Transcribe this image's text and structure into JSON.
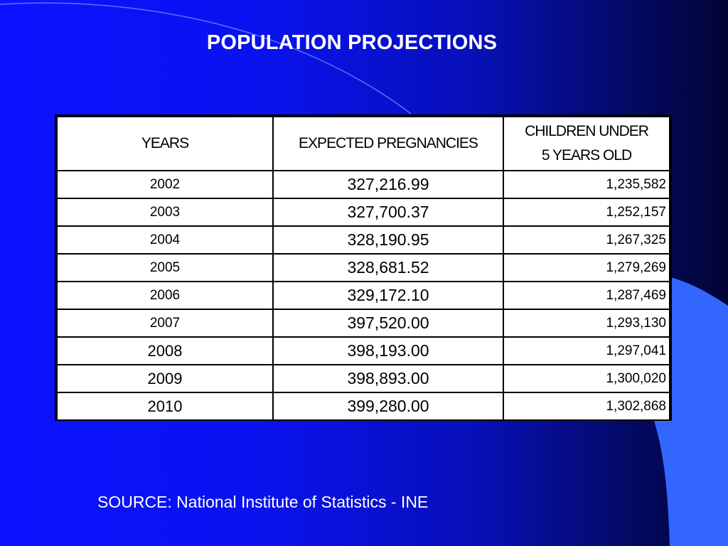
{
  "title": "POPULATION PROJECTIONS",
  "table": {
    "headers": {
      "years": "YEARS",
      "pregnancies": "EXPECTED PREGNANCIES",
      "children_line1": "CHILDREN UNDER",
      "children_line2": "5 YEARS OLD"
    },
    "rows": [
      {
        "year": "2002",
        "pregnancies": "327,216.99",
        "children": "1,235,582"
      },
      {
        "year": "2003",
        "pregnancies": "327,700.37",
        "children": "1,252,157"
      },
      {
        "year": "2004",
        "pregnancies": "328,190.95",
        "children": "1,267,325"
      },
      {
        "year": "2005",
        "pregnancies": "328,681.52",
        "children": "1,279,269"
      },
      {
        "year": "2006",
        "pregnancies": "329,172.10",
        "children": "1,287,469"
      },
      {
        "year": "2007",
        "pregnancies": "397,520.00",
        "children": "1,293,130"
      },
      {
        "year": "2008",
        "pregnancies": "398,193.00",
        "children": "1,297,041"
      },
      {
        "year": "2009",
        "pregnancies": "398,893.00",
        "children": "1,300,020"
      },
      {
        "year": "2010",
        "pregnancies": "399,280.00",
        "children": "1,302,868"
      }
    ]
  },
  "source": "SOURCE: National Institute of Statistics - INE",
  "colors": {
    "background_left": "#0b13ff",
    "background_right": "#020434",
    "accent_shape": "#3366ff",
    "text": "#ffffff"
  }
}
